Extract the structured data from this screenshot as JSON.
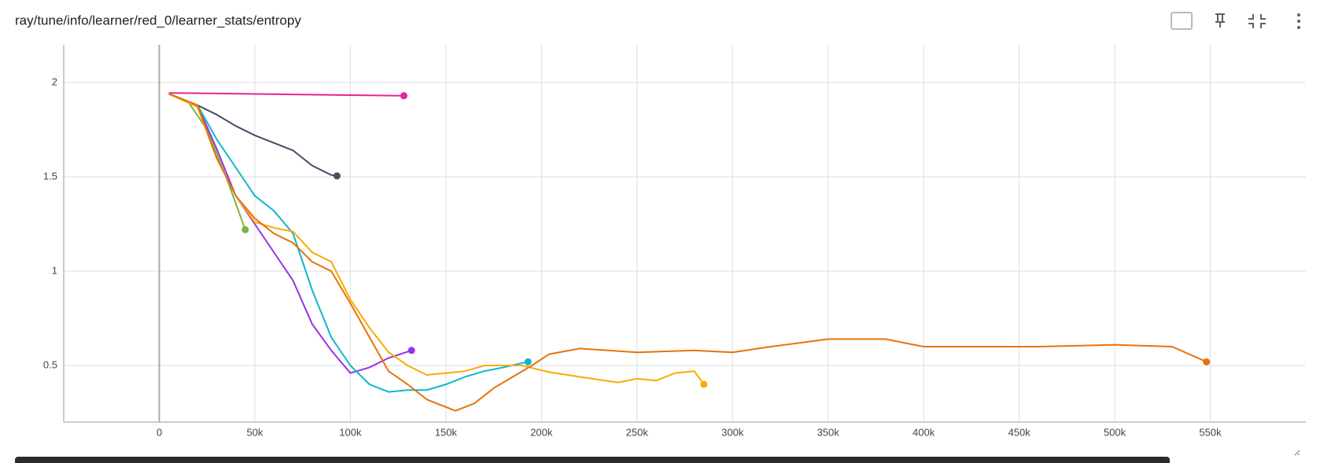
{
  "chart_data": {
    "type": "line",
    "title": "ray/tune/info/learner/red_0/learner_stats/entropy",
    "xlim": [
      -50000,
      600000
    ],
    "xticks": [
      {
        "value": 0,
        "label": "0"
      },
      {
        "value": 50000,
        "label": "50k"
      },
      {
        "value": 100000,
        "label": "100k"
      },
      {
        "value": 150000,
        "label": "150k"
      },
      {
        "value": 200000,
        "label": "200k"
      },
      {
        "value": 250000,
        "label": "250k"
      },
      {
        "value": 300000,
        "label": "300k"
      },
      {
        "value": 350000,
        "label": "350k"
      },
      {
        "value": 400000,
        "label": "400k"
      },
      {
        "value": 450000,
        "label": "450k"
      },
      {
        "value": 500000,
        "label": "500k"
      },
      {
        "value": 550000,
        "label": "550k"
      }
    ],
    "ylim": [
      0.2,
      2.2
    ],
    "yticks": [
      0.5,
      1,
      1.5,
      2
    ],
    "grid": true,
    "series": [
      {
        "color": "#e52592",
        "x": [
          5000,
          128000
        ],
        "values": [
          1.945,
          1.93
        ]
      },
      {
        "color": "#425066",
        "x": [
          5000,
          20000,
          30000,
          40000,
          50000,
          60000,
          70000,
          80000,
          90000,
          93000
        ],
        "values": [
          1.94,
          1.88,
          1.83,
          1.77,
          1.72,
          1.68,
          1.64,
          1.56,
          1.51,
          1.505
        ]
      },
      {
        "color": "#7cb342",
        "x": [
          5000,
          15000,
          25000,
          35000,
          45000
        ],
        "values": [
          1.94,
          1.9,
          1.75,
          1.5,
          1.22
        ]
      },
      {
        "color": "#9334e6",
        "x": [
          5000,
          20000,
          30000,
          40000,
          50000,
          60000,
          70000,
          80000,
          90000,
          100000,
          110000,
          120000,
          132000
        ],
        "values": [
          1.94,
          1.88,
          1.65,
          1.4,
          1.25,
          1.1,
          0.95,
          0.72,
          0.58,
          0.46,
          0.49,
          0.54,
          0.58
        ]
      },
      {
        "color": "#12b5cb",
        "x": [
          5000,
          20000,
          30000,
          40000,
          50000,
          60000,
          70000,
          80000,
          90000,
          100000,
          110000,
          120000,
          130000,
          140000,
          150000,
          160000,
          170000,
          180000,
          193000
        ],
        "values": [
          1.94,
          1.88,
          1.7,
          1.55,
          1.4,
          1.32,
          1.2,
          0.9,
          0.65,
          0.5,
          0.4,
          0.36,
          0.37,
          0.37,
          0.4,
          0.44,
          0.47,
          0.49,
          0.52
        ]
      },
      {
        "color": "#f9ab00",
        "x": [
          5000,
          20000,
          30000,
          40000,
          50000,
          60000,
          70000,
          80000,
          90000,
          100000,
          110000,
          120000,
          130000,
          140000,
          150000,
          160000,
          170000,
          180000,
          190000,
          204000,
          220000,
          240000,
          250000,
          260000,
          270000,
          280000,
          285000
        ],
        "values": [
          1.94,
          1.87,
          1.6,
          1.4,
          1.26,
          1.23,
          1.21,
          1.1,
          1.05,
          0.85,
          0.7,
          0.57,
          0.5,
          0.45,
          0.46,
          0.47,
          0.5,
          0.5,
          0.5,
          0.465,
          0.44,
          0.41,
          0.43,
          0.42,
          0.46,
          0.47,
          0.4
        ]
      },
      {
        "color": "#e8710a",
        "x": [
          5000,
          20000,
          30000,
          40000,
          50000,
          60000,
          70000,
          80000,
          90000,
          100000,
          110000,
          120000,
          130000,
          140000,
          150000,
          155000,
          165000,
          175000,
          185000,
          195000,
          204000,
          220000,
          250000,
          280000,
          300000,
          320000,
          350000,
          380000,
          400000,
          430000,
          460000,
          500000,
          530000,
          548000
        ],
        "values": [
          1.94,
          1.88,
          1.6,
          1.4,
          1.28,
          1.2,
          1.15,
          1.05,
          1.0,
          0.83,
          0.65,
          0.47,
          0.4,
          0.32,
          0.28,
          0.26,
          0.3,
          0.38,
          0.44,
          0.5,
          0.56,
          0.59,
          0.57,
          0.58,
          0.57,
          0.6,
          0.64,
          0.64,
          0.6,
          0.6,
          0.6,
          0.61,
          0.6,
          0.52
        ]
      }
    ]
  }
}
